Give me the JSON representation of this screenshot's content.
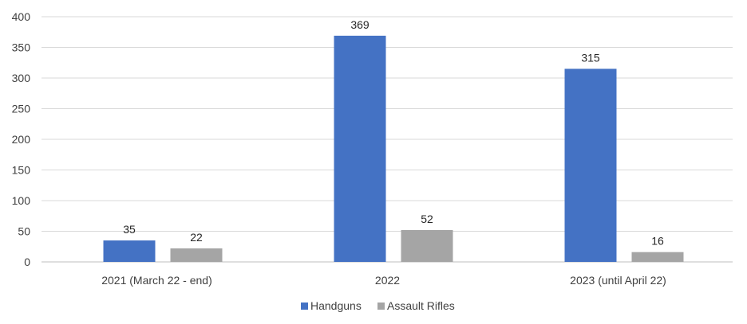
{
  "chart_data": {
    "type": "bar",
    "categories": [
      "2021 (March 22 - end)",
      "2022",
      "2023 (until April 22)"
    ],
    "series": [
      {
        "name": "Handguns",
        "values": [
          35,
          369,
          315
        ],
        "color": "#4472C4"
      },
      {
        "name": "Assault Rifles",
        "values": [
          22,
          52,
          16
        ],
        "color": "#A5A5A5"
      }
    ],
    "ylim": [
      0,
      400
    ],
    "yticks": [
      0,
      50,
      100,
      150,
      200,
      250,
      300,
      350,
      400
    ],
    "grid": true,
    "data_labels": true,
    "legend_position": "bottom"
  }
}
